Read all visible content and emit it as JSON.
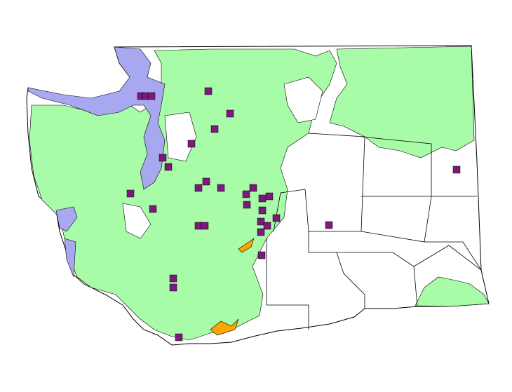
{
  "map": {
    "colors": {
      "background": "#ffffff",
      "land": "#ffffff",
      "forest": "#a8fca8",
      "water": "#a8a8f0",
      "highlight": "#ffa500",
      "marker": "#7b1a7b",
      "border": "#000000"
    },
    "layers": [
      "state-outline",
      "county-boundaries",
      "forest-cover",
      "water-bodies",
      "site-markers"
    ]
  }
}
